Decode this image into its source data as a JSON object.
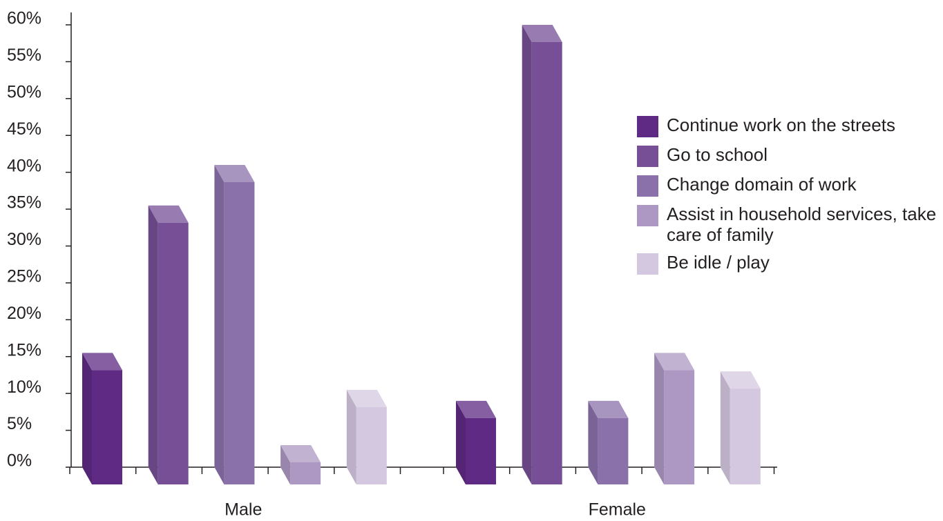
{
  "chart_data": {
    "type": "bar3d",
    "categories": [
      "Male",
      "Female"
    ],
    "series": [
      {
        "name": "Continue work on the streets",
        "color": "#5e2a84",
        "values": [
          15.5,
          9
        ]
      },
      {
        "name": "Go to school",
        "color": "#764f96",
        "values": [
          35.5,
          60
        ]
      },
      {
        "name": "Change domain of work",
        "color": "#8b71aa",
        "values": [
          41,
          9
        ]
      },
      {
        "name": "Assist in household services, take care of family",
        "color": "#ad98c3",
        "values": [
          3,
          15.5
        ]
      },
      {
        "name": "Be idle / play",
        "color": "#d4c8e0",
        "values": [
          10.5,
          13
        ]
      }
    ],
    "ylim": [
      0,
      60
    ],
    "yticks": [
      {
        "value": 0,
        "label": "0%"
      },
      {
        "value": 5,
        "label": "5%"
      },
      {
        "value": 10,
        "label": "10%"
      },
      {
        "value": 15,
        "label": "15%"
      },
      {
        "value": 20,
        "label": "20%"
      },
      {
        "value": 25,
        "label": "25%"
      },
      {
        "value": 30,
        "label": "30%"
      },
      {
        "value": 35,
        "label": "35%"
      },
      {
        "value": 40,
        "label": "40%"
      },
      {
        "value": 45,
        "label": "45%"
      },
      {
        "value": 50,
        "label": "50%"
      },
      {
        "value": 55,
        "label": "55%"
      },
      {
        "value": 60,
        "label": "60%"
      }
    ],
    "legend": "right"
  }
}
